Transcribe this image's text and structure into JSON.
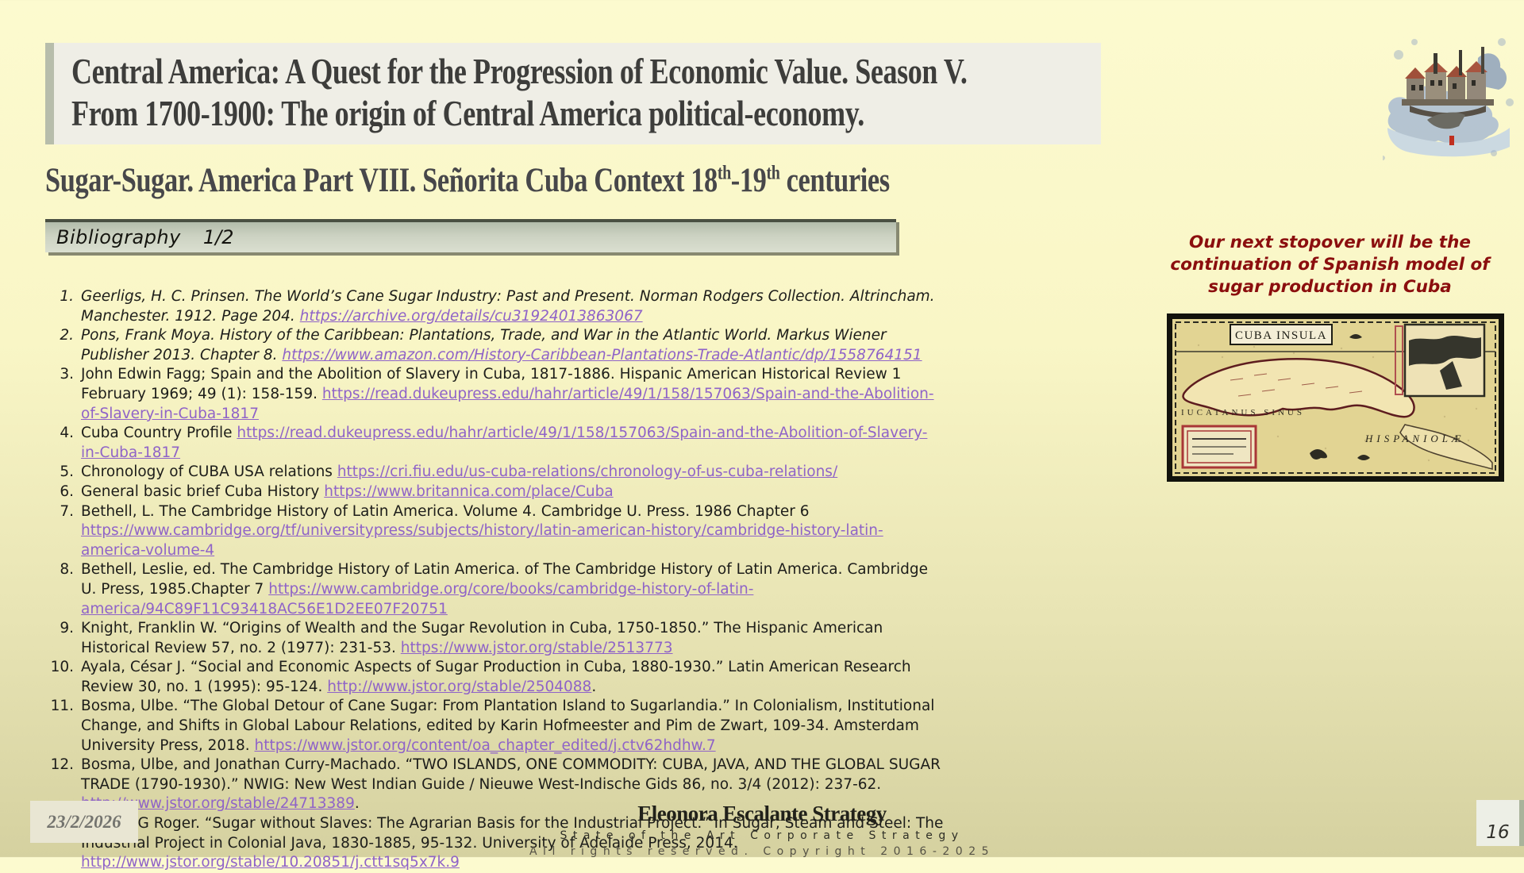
{
  "header": {
    "title_line1": "Central America:  A Quest for the Progression of Economic Value. Season V.",
    "title_line2": "From 1700-1900: The origin of  Central America political-economy.",
    "subtitle": {
      "p1": "Sugar-Sugar. America Part  VIII. Señorita Cuba Context 18",
      "sup1": "th",
      "p2": "-19",
      "sup2": "th",
      "p3": " centuries"
    }
  },
  "bibliography": {
    "label": "Bibliography",
    "page_indicator": "1/2",
    "items": [
      {
        "num": "1.",
        "italic": true,
        "segments": [
          {
            "type": "text",
            "text": "Geerligs, H. C. Prinsen. The World’s Cane Sugar Industry: Past and Present. Norman Rodgers Collection. Altrincham. Manchester. 1912. Page 204. "
          },
          {
            "type": "link",
            "text": "https://archive.org/details/cu31924013863067"
          }
        ]
      },
      {
        "num": "2.",
        "italic": true,
        "segments": [
          {
            "type": "text",
            "text": "Pons, Frank Moya. History of the Caribbean: Plantations, Trade, and War in the Atlantic World. Markus Wiener Publisher 2013. Chapter 8. "
          },
          {
            "type": "link",
            "text": "https://www.amazon.com/History-Caribbean-Plantations-Trade-Atlantic/dp/1558764151"
          }
        ]
      },
      {
        "num": "3.",
        "italic": false,
        "segments": [
          {
            "type": "text",
            "text": "John Edwin Fagg; Spain and the Abolition of Slavery in Cuba, 1817-1886. Hispanic American Historical Review 1 February 1969; 49 (1): 158-159. "
          },
          {
            "type": "link",
            "text": "https://read.dukeupress.edu/hahr/article/49/1/158/157063/Spain-and-the-Abolition-of-Slavery-in-Cuba-1817"
          }
        ]
      },
      {
        "num": "4.",
        "italic": false,
        "segments": [
          {
            "type": "text",
            "text": "Cuba Country Profile "
          },
          {
            "type": "link",
            "text": "https://read.dukeupress.edu/hahr/article/49/1/158/157063/Spain-and-the-Abolition-of-Slavery-in-Cuba-1817"
          }
        ]
      },
      {
        "num": "5.",
        "italic": false,
        "segments": [
          {
            "type": "text",
            "text": "Chronology of CUBA USA relations "
          },
          {
            "type": "link",
            "text": "https://cri.fiu.edu/us-cuba-relations/chronology-of-us-cuba-relations/"
          }
        ]
      },
      {
        "num": "6.",
        "italic": false,
        "segments": [
          {
            "type": "text",
            "text": "General basic brief Cuba History "
          },
          {
            "type": "link",
            "text": "https://www.britannica.com/place/Cuba"
          }
        ]
      },
      {
        "num": "7.",
        "italic": false,
        "segments": [
          {
            "type": "text",
            "text": "Bethell, L. The Cambridge History of Latin America. Volume 4. Cambridge U. Press. 1986 Chapter 6 "
          },
          {
            "type": "link",
            "text": "https://www.cambridge.org/tf/universitypress/subjects/history/latin-american-history/cambridge-history-latin-america-volume-4"
          }
        ]
      },
      {
        "num": "8.",
        "italic": false,
        "segments": [
          {
            "type": "text",
            "text": "Bethell, Leslie, ed. The Cambridge History of Latin America. of The Cambridge History of Latin America. Cambridge U. Press, 1985.Chapter 7 "
          },
          {
            "type": "link",
            "text": "https://www.cambridge.org/core/books/cambridge-history-of-latin-america/94C89F11C93418AC56E1D2EE07F20751"
          }
        ]
      },
      {
        "num": "9.",
        "italic": false,
        "segments": [
          {
            "type": "text",
            "text": "Knight, Franklin W. “Origins of Wealth and the Sugar Revolution in Cuba, 1750-1850.” The Hispanic American Historical Review 57, no. 2 (1977): 231-53. "
          },
          {
            "type": "link",
            "text": "https://www.jstor.org/stable/2513773"
          }
        ]
      },
      {
        "num": "10.",
        "italic": false,
        "segments": [
          {
            "type": "text",
            "text": "Ayala, César J. “Social and Economic Aspects of Sugar Production in Cuba, 1880-1930.” Latin American Research Review 30, no. 1 (1995): 95-124. "
          },
          {
            "type": "link",
            "text": "http://www.jstor.org/stable/2504088"
          },
          {
            "type": "text",
            "text": "."
          }
        ]
      },
      {
        "num": "11.",
        "italic": false,
        "segments": [
          {
            "type": "text",
            "text": "Bosma, Ulbe. “The Global Detour of Cane Sugar: From Plantation Island to Sugarlandia.” In Colonialism, Institutional Change, and Shifts in Global Labour Relations, edited by Karin Hofmeester and Pim de Zwart, 109-34. Amsterdam University Press, 2018. "
          },
          {
            "type": "link",
            "text": "https://www.jstor.org/content/oa_chapter_edited/j.ctv62hdhw.7"
          }
        ]
      },
      {
        "num": "12.",
        "italic": false,
        "segments": [
          {
            "type": "text",
            "text": "Bosma, Ulbe, and Jonathan Curry-Machado. “TWO ISLANDS, ONE COMMODITY: CUBA, JAVA, AND THE GLOBAL SUGAR TRADE (1790-1930).” NWIG: New West Indian Guide / Nieuwe West-Indische Gids 86, no. 3/4 (2012): 237-62. "
          },
          {
            "type": "link",
            "text": "http://www.jstor.org/stable/24713389"
          },
          {
            "type": "text",
            "text": "."
          }
        ]
      },
      {
        "num": "13.",
        "italic": false,
        "segments": [
          {
            "type": "text",
            "text": "Knight, G Roger. “Sugar without Slaves: The Agrarian Basis for the Industrial Project.” In Sugar, Steam and Steel: The Industrial Project in Colonial Java, 1830-1885, 95-132. University of Adelaide Press, 2014. "
          },
          {
            "type": "link",
            "text": "http://www.jstor.org/stable/10.20851/j.ctt1sq5x7k.9"
          }
        ]
      }
    ]
  },
  "side_note": "Our next stopover will be the continuation of Spanish model of sugar production in Cuba",
  "map": {
    "title": "CUBA INSULA",
    "sea_label": "IUCATANUS SINUS",
    "island_label": "HISPANIOLÆ"
  },
  "footer": {
    "date": "23/2/2026",
    "brand": "Eleonora Escalante Strategy",
    "tagline": "State of the Art Corporate Strategy",
    "copyright": "All rights reserved. Copyright 2016-2025",
    "page_number": "16"
  },
  "colors": {
    "link": "#8f63c8",
    "accent_red": "#8b0e0e",
    "background_top": "#fcfacf",
    "background_bottom": "#d5d1a0"
  }
}
